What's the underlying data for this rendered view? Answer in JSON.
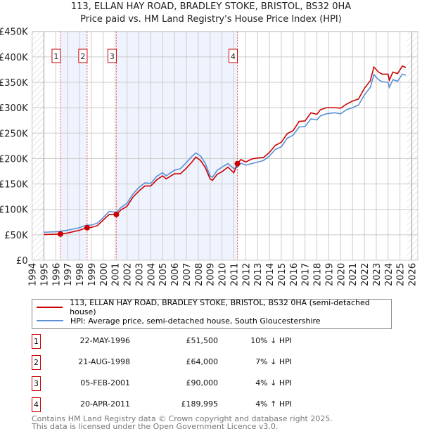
{
  "chart_data": {
    "type": "line",
    "title": "113, ELLAN HAY ROAD, BRADLEY STOKE, BRISTOL, BS32 0HA",
    "subtitle": "Price paid vs. HM Land Registry's House Price Index (HPI)",
    "xlim": [
      1994,
      2026.5
    ],
    "ylim": [
      0,
      450000
    ],
    "yticks": [
      0,
      50000,
      100000,
      150000,
      200000,
      250000,
      300000,
      350000,
      400000,
      450000
    ],
    "ytick_labels": [
      "£0",
      "£50K",
      "£100K",
      "£150K",
      "£200K",
      "£250K",
      "£300K",
      "£350K",
      "£400K",
      "£450K"
    ],
    "xticks": [
      "1994",
      "1995",
      "1996",
      "1997",
      "1998",
      "1999",
      "2000",
      "2001",
      "2002",
      "2003",
      "2004",
      "2005",
      "2006",
      "2007",
      "2008",
      "2009",
      "2010",
      "2011",
      "2012",
      "2013",
      "2014",
      "2015",
      "2016",
      "2017",
      "2018",
      "2019",
      "2020",
      "2021",
      "2022",
      "2023",
      "2024",
      "2025",
      "2026"
    ],
    "grid": true,
    "series": [
      {
        "name": "113, ELLAN HAY ROAD, BRADLEY STOKE, BRISTOL, BS32 0HA (semi-detached house)",
        "color": "#cc0000",
        "points": [
          [
            1995,
            50500
          ],
          [
            1996.4,
            51500
          ],
          [
            1997,
            53500
          ],
          [
            1998,
            59000
          ],
          [
            1998.64,
            64000
          ],
          [
            1999,
            64500
          ],
          [
            1999.5,
            68000
          ],
          [
            2000,
            79000
          ],
          [
            2000.5,
            90000
          ],
          [
            2001.1,
            90000
          ],
          [
            2001.5,
            99000
          ],
          [
            2002,
            106000
          ],
          [
            2002.5,
            124000
          ],
          [
            2003,
            136000
          ],
          [
            2003.5,
            146000
          ],
          [
            2004,
            146000
          ],
          [
            2004.5,
            158000
          ],
          [
            2005,
            166000
          ],
          [
            2005.3,
            160000
          ],
          [
            2006,
            170000
          ],
          [
            2006.5,
            170000
          ],
          [
            2007,
            181000
          ],
          [
            2007.5,
            194000
          ],
          [
            2007.8,
            203000
          ],
          [
            2008.2,
            196000
          ],
          [
            2008.6,
            182000
          ],
          [
            2009,
            160000
          ],
          [
            2009.2,
            157000
          ],
          [
            2009.6,
            169000
          ],
          [
            2010,
            174000
          ],
          [
            2010.5,
            183000
          ],
          [
            2011,
            172000
          ],
          [
            2011.3,
            189995
          ],
          [
            2011.6,
            198000
          ],
          [
            2012,
            193000
          ],
          [
            2012.5,
            199000
          ],
          [
            2013,
            201000
          ],
          [
            2013.5,
            202000
          ],
          [
            2014,
            212000
          ],
          [
            2014.5,
            226000
          ],
          [
            2015,
            232000
          ],
          [
            2015.5,
            249000
          ],
          [
            2016,
            255000
          ],
          [
            2016.5,
            273000
          ],
          [
            2017,
            274000
          ],
          [
            2017.5,
            290000
          ],
          [
            2018,
            287000
          ],
          [
            2018.3,
            296000
          ],
          [
            2018.8,
            300000
          ],
          [
            2019.5,
            300000
          ],
          [
            2020,
            299000
          ],
          [
            2020.5,
            307000
          ],
          [
            2021,
            313000
          ],
          [
            2021.5,
            317000
          ],
          [
            2022,
            338000
          ],
          [
            2022.5,
            353000
          ],
          [
            2022.8,
            380000
          ],
          [
            2023.2,
            370000
          ],
          [
            2023.5,
            366000
          ],
          [
            2024,
            366000
          ],
          [
            2024.1,
            354000
          ],
          [
            2024.4,
            370000
          ],
          [
            2024.8,
            367000
          ],
          [
            2025.2,
            382000
          ],
          [
            2025.5,
            379000
          ]
        ]
      },
      {
        "name": "HPI: Average price, semi-detached house, South Gloucestershire",
        "color": "#5b8fd6",
        "points": [
          [
            1995,
            55000
          ],
          [
            1996,
            56000
          ],
          [
            1996.4,
            57000
          ],
          [
            1997,
            59000
          ],
          [
            1998,
            64000
          ],
          [
            1998.6,
            69000
          ],
          [
            1999,
            69000
          ],
          [
            1999.5,
            73000
          ],
          [
            2000,
            84000
          ],
          [
            2000.5,
            96000
          ],
          [
            2001.1,
            94000
          ],
          [
            2001.5,
            104000
          ],
          [
            2002,
            112000
          ],
          [
            2002.5,
            130000
          ],
          [
            2003,
            143000
          ],
          [
            2003.5,
            152000
          ],
          [
            2004,
            151000
          ],
          [
            2004.5,
            165000
          ],
          [
            2005,
            172000
          ],
          [
            2005.3,
            166000
          ],
          [
            2006,
            177000
          ],
          [
            2006.5,
            180000
          ],
          [
            2007,
            192000
          ],
          [
            2007.5,
            205000
          ],
          [
            2007.8,
            211000
          ],
          [
            2008.2,
            205000
          ],
          [
            2008.6,
            190000
          ],
          [
            2009,
            166000
          ],
          [
            2009.2,
            163000
          ],
          [
            2009.6,
            177000
          ],
          [
            2010,
            183000
          ],
          [
            2010.5,
            190000
          ],
          [
            2011,
            180000
          ],
          [
            2011.3,
            183000
          ],
          [
            2011.6,
            191000
          ],
          [
            2012,
            187000
          ],
          [
            2012.5,
            190000
          ],
          [
            2013,
            193000
          ],
          [
            2013.5,
            196000
          ],
          [
            2014,
            205000
          ],
          [
            2014.5,
            218000
          ],
          [
            2015,
            223000
          ],
          [
            2015.5,
            240000
          ],
          [
            2016,
            246000
          ],
          [
            2016.5,
            262000
          ],
          [
            2017,
            263000
          ],
          [
            2017.5,
            278000
          ],
          [
            2018,
            276000
          ],
          [
            2018.3,
            284000
          ],
          [
            2018.8,
            288000
          ],
          [
            2019.5,
            290000
          ],
          [
            2020,
            288000
          ],
          [
            2020.5,
            296000
          ],
          [
            2021,
            300000
          ],
          [
            2021.5,
            305000
          ],
          [
            2022,
            325000
          ],
          [
            2022.5,
            340000
          ],
          [
            2022.8,
            365000
          ],
          [
            2023.2,
            355000
          ],
          [
            2023.5,
            351000
          ],
          [
            2024,
            350000
          ],
          [
            2024.1,
            340000
          ],
          [
            2024.4,
            355000
          ],
          [
            2024.8,
            352000
          ],
          [
            2025.2,
            366000
          ],
          [
            2025.5,
            364000
          ]
        ]
      }
    ],
    "sales": [
      {
        "label": "1",
        "x": 1996.39,
        "price": 51500
      },
      {
        "label": "2",
        "x": 1998.64,
        "price": 64000
      },
      {
        "label": "3",
        "x": 2001.1,
        "price": 90000
      },
      {
        "label": "4",
        "x": 2011.3,
        "price": 189995
      }
    ],
    "shaded_ranges": [
      [
        1996.39,
        1998.64
      ],
      [
        2001.1,
        2011.3
      ]
    ],
    "hatched_ranges": [
      [
        1994,
        1995
      ],
      [
        2025.6,
        2026.5
      ]
    ]
  },
  "table": [
    {
      "label": "1",
      "date": "22-MAY-1996",
      "price": "£51,500",
      "hpi": "10% ↓ HPI"
    },
    {
      "label": "2",
      "date": "21-AUG-1998",
      "price": "£64,000",
      "hpi": "7% ↓ HPI"
    },
    {
      "label": "3",
      "date": "05-FEB-2001",
      "price": "£90,000",
      "hpi": "4% ↓ HPI"
    },
    {
      "label": "4",
      "date": "20-APR-2011",
      "price": "£189,995",
      "hpi": "4% ↑ HPI"
    }
  ],
  "footer": {
    "line1": "Contains HM Land Registry data © Crown copyright and database right 2025.",
    "line2": "This data is licensed under the Open Government Licence v3.0."
  }
}
